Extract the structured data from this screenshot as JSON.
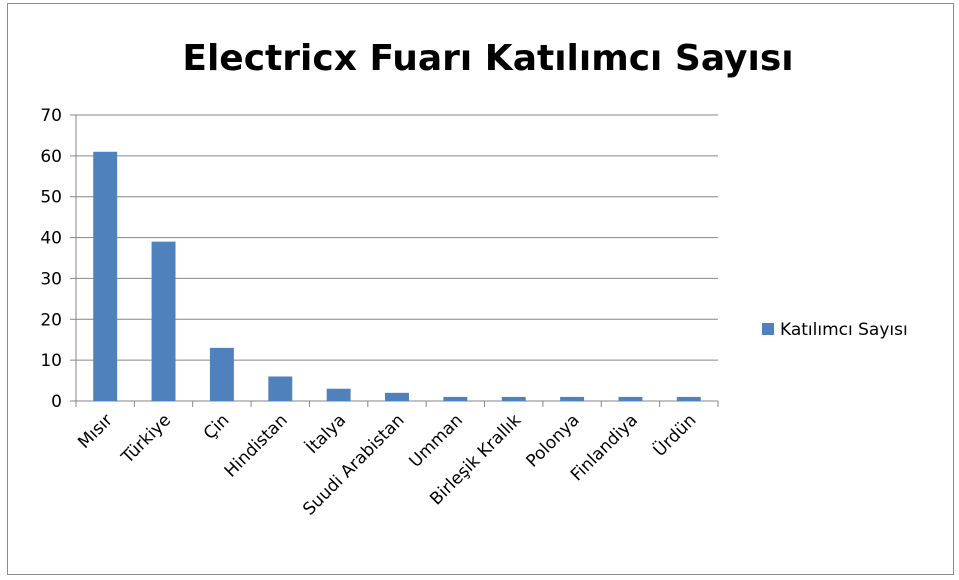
{
  "chart_data": {
    "type": "bar",
    "title": "Electricx Fuarı Katılımcı Sayısı",
    "categories": [
      "Mısır",
      "Türkiye",
      "Çin",
      "Hindistan",
      "İtalya",
      "Suudi Arabistan",
      "Umman",
      "Birleşik Krallık",
      "Polonya",
      "Finlandiya",
      "Ürdün"
    ],
    "series": [
      {
        "name": "Katılımcı Sayısı",
        "values": [
          61,
          39,
          13,
          6,
          3,
          2,
          1,
          1,
          1,
          1,
          1
        ],
        "color": "#4f81bd"
      }
    ],
    "ylim": [
      0,
      70
    ],
    "yticks": [
      "0",
      "10",
      "20",
      "30",
      "40",
      "50",
      "60",
      "70"
    ],
    "grid": true,
    "legend": "right"
  }
}
